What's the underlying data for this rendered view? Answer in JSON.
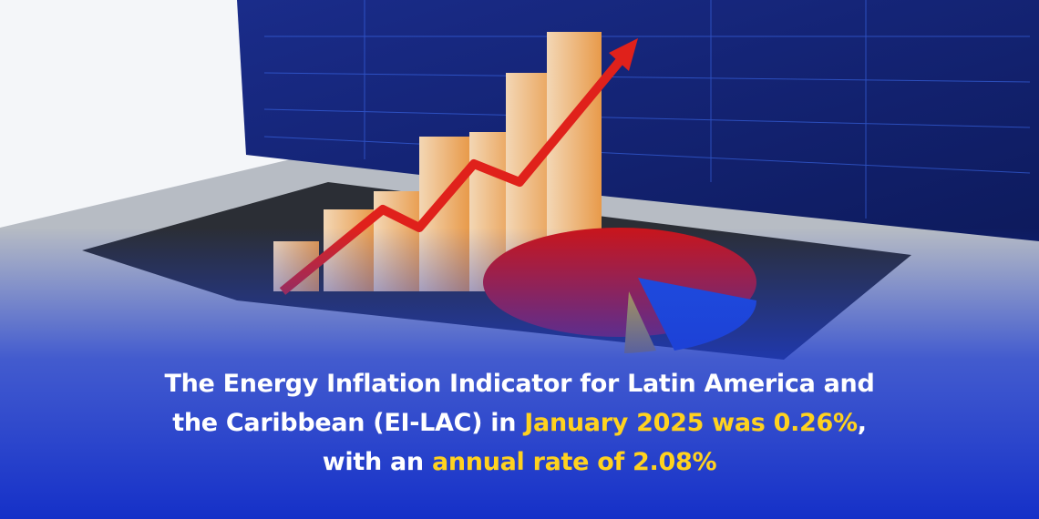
{
  "headline": {
    "line1": "The Energy Inflation Indicator for Latin America and",
    "line2_start": "the Caribbean (EI-LAC) in ",
    "line2_highlight": "January 2025 was 0.26%",
    "line2_end": ",",
    "line3_start": "with an ",
    "line3_highlight": "annual rate of 2.08%"
  }
}
